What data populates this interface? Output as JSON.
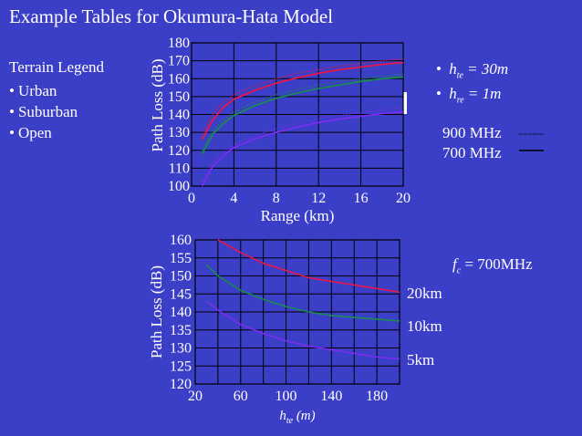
{
  "title": "Example Tables for Okumura-Hata Model",
  "terrain_legend": {
    "title": "Terrain Legend",
    "items": [
      "Urban",
      "Suburban",
      "Open"
    ]
  },
  "params": {
    "hte": {
      "symbol": "h",
      "sub": "te",
      "rest": " = 30m"
    },
    "hre": {
      "symbol": "h",
      "sub": "re",
      "rest": " = 1m"
    }
  },
  "freq_legend": [
    {
      "label": "900 MHz",
      "style": "dotted"
    },
    {
      "label": "700 MHz",
      "style": "solid"
    }
  ],
  "fc_note": {
    "symbol": "f",
    "sub": "c",
    "rest": " = 700MHz"
  },
  "distance_labels": [
    "20km",
    "10km",
    "5km"
  ],
  "colors": {
    "background": "#3b3ec6",
    "plot_bg": "#3b3ec6",
    "urban": "#e8174a",
    "suburban": "#1a8a52",
    "open": "#7a2cf0",
    "text": "#ffffff"
  },
  "chart_data": [
    {
      "type": "line",
      "title": "",
      "xlabel": "Range (km)",
      "ylabel": "Path Loss (dB)",
      "xlim": [
        0,
        20
      ],
      "ylim": [
        100,
        180
      ],
      "xticks": [
        "0",
        "4",
        "8",
        "12",
        "16",
        "20"
      ],
      "yticks": [
        "100",
        "110",
        "120",
        "130",
        "140",
        "150",
        "160",
        "170",
        "180"
      ],
      "grid": true,
      "x": [
        1,
        2,
        3,
        4,
        6,
        8,
        10,
        12,
        14,
        16,
        18,
        20
      ],
      "series": [
        {
          "terrain": "Urban",
          "freq": "900 MHz",
          "line": "dotted",
          "values": [
            129,
            140,
            147,
            151,
            156,
            160,
            163,
            165,
            167,
            168.5,
            170,
            171
          ]
        },
        {
          "terrain": "Urban",
          "freq": "700 MHz",
          "line": "solid",
          "values": [
            126,
            137,
            144,
            148.5,
            153.5,
            157.5,
            160.5,
            163,
            165,
            166.5,
            168,
            169
          ]
        },
        {
          "terrain": "Suburban",
          "freq": "900 MHz",
          "line": "dotted",
          "values": [
            120,
            131,
            137,
            141.5,
            147,
            151,
            154,
            156.5,
            158.5,
            160,
            161.5,
            162.5
          ]
        },
        {
          "terrain": "Suburban",
          "freq": "700 MHz",
          "line": "solid",
          "values": [
            118,
            129,
            135,
            139.5,
            145,
            149,
            152,
            154.5,
            156.5,
            158.5,
            160,
            161
          ]
        },
        {
          "terrain": "Open",
          "freq": "900 MHz",
          "line": "dotted",
          "values": [
            102,
            113,
            119,
            123.5,
            128.5,
            132,
            135,
            137.5,
            139.5,
            141,
            142.5,
            143.5
          ]
        },
        {
          "terrain": "Open",
          "freq": "700 MHz",
          "line": "solid",
          "values": [
            100,
            111,
            117,
            121.5,
            126.5,
            130,
            133,
            135.5,
            137.5,
            139,
            140.5,
            141.5
          ]
        }
      ]
    },
    {
      "type": "line",
      "title": "",
      "xlabel": "hte (m)",
      "ylabel": "Path Loss (dB)",
      "xlim": [
        20,
        200
      ],
      "ylim": [
        120,
        160
      ],
      "xticks": [
        "20",
        "60",
        "100",
        "140",
        "180"
      ],
      "yticks": [
        "120",
        "125",
        "130",
        "135",
        "140",
        "145",
        "150",
        "155",
        "160"
      ],
      "grid": true,
      "x": [
        30,
        40,
        60,
        80,
        100,
        120,
        140,
        160,
        180,
        200
      ],
      "series": [
        {
          "distance": "20km",
          "values": [
            null,
            160,
            156.5,
            153.5,
            151.5,
            149.5,
            148.5,
            147.5,
            146.5,
            145.5
          ]
        },
        {
          "distance": "10km",
          "values": [
            153,
            150,
            146,
            143.5,
            141.5,
            140,
            139,
            138.5,
            138,
            137.5
          ]
        },
        {
          "distance": "5km",
          "values": [
            143,
            140.5,
            136.5,
            134,
            132,
            130.5,
            129.5,
            128.5,
            127.5,
            127
          ]
        }
      ]
    }
  ]
}
